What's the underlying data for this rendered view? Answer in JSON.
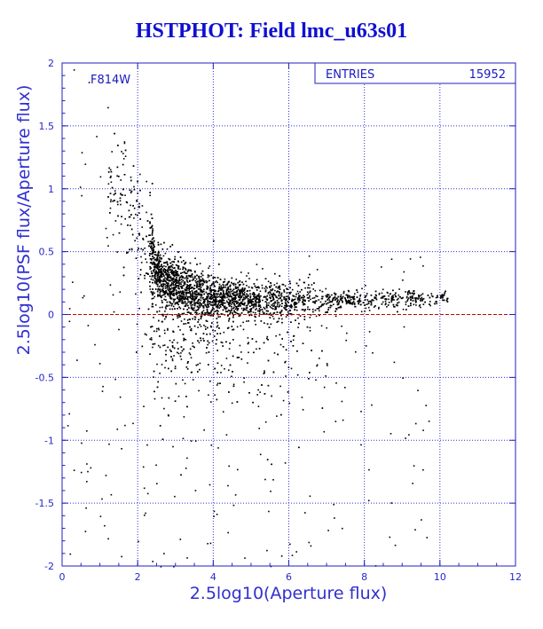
{
  "chart_data": {
    "type": "scatter",
    "title": "HSTPHOT: Field lmc_u63s01",
    "xlabel": "2.5log10(Aperture flux)",
    "ylabel": "2.5log10(PSF flux/Aperture flux)",
    "xlim": [
      0,
      12
    ],
    "ylim": [
      -2,
      2
    ],
    "xticks": [
      0,
      2,
      4,
      6,
      8,
      10,
      12
    ],
    "yticks": [
      -2,
      -1.5,
      -1,
      -0.5,
      0,
      0.5,
      1,
      1.5,
      2
    ],
    "xtick_labels": [
      "0",
      "2",
      "4",
      "6",
      "8",
      "10",
      "12"
    ],
    "ytick_labels": [
      "-2",
      "-1.5",
      "-1",
      "-0.5",
      "0",
      "0.5",
      "1",
      "1.5",
      "2"
    ],
    "grid": true,
    "filter_label": "F814W",
    "stats_box": {
      "label": "ENTRIES",
      "value": "15952"
    },
    "reference_line": {
      "y": 0,
      "color": "#cc0000",
      "style": "dashed"
    },
    "series": [
      {
        "points": [
          [
            0.3,
            1.95
          ],
          [
            0.7,
            1.85
          ],
          [
            1.2,
            1.65
          ],
          [
            0.9,
            1.42
          ],
          [
            1.3,
            1.3
          ],
          [
            0.6,
            1.2
          ],
          [
            1.0,
            1.1
          ],
          [
            1.6,
            1.0
          ],
          [
            1.9,
            0.85
          ],
          [
            2.1,
            0.7
          ],
          [
            0.5,
            0.95
          ],
          [
            1.4,
            0.75
          ],
          [
            2.3,
            0.55
          ],
          [
            2.6,
            0.45
          ],
          [
            3.0,
            0.4
          ],
          [
            3.5,
            0.35
          ],
          [
            4.0,
            0.3
          ],
          [
            4.5,
            0.25
          ],
          [
            5.0,
            0.22
          ],
          [
            5.5,
            0.2
          ],
          [
            6.0,
            0.18
          ],
          [
            6.5,
            0.17
          ],
          [
            7.0,
            0.16
          ],
          [
            7.5,
            0.16
          ],
          [
            8.0,
            0.15
          ],
          [
            8.5,
            0.15
          ],
          [
            9.0,
            0.14
          ],
          [
            9.5,
            0.14
          ],
          [
            10.0,
            0.14
          ],
          [
            3.0,
            0.1
          ],
          [
            3.5,
            0.08
          ],
          [
            4.0,
            0.05
          ],
          [
            4.5,
            0.02
          ],
          [
            5.0,
            0.0
          ],
          [
            3.2,
            -0.2
          ],
          [
            3.8,
            -0.3
          ],
          [
            4.2,
            -0.4
          ],
          [
            3.6,
            -0.6
          ],
          [
            4.8,
            -0.5
          ],
          [
            2.8,
            -0.8
          ],
          [
            3.4,
            -1.0
          ],
          [
            4.4,
            -1.2
          ],
          [
            5.2,
            -0.9
          ],
          [
            6.0,
            -0.7
          ],
          [
            1.0,
            -1.6
          ],
          [
            2.0,
            -1.8
          ],
          [
            4.0,
            -1.6
          ],
          [
            5.5,
            -1.4
          ],
          [
            0.2,
            -1.9
          ],
          [
            7.0,
            -0.4
          ],
          [
            7.5,
            -0.2
          ],
          [
            8.2,
            -0.3
          ],
          [
            9.0,
            -0.5
          ],
          [
            6.5,
            0.3
          ]
        ],
        "density_model": {
          "ridge": [
            [
              1.6,
              0.95
            ],
            [
              2.2,
              0.55
            ],
            [
              2.6,
              0.3
            ],
            [
              3.5,
              0.15
            ],
            [
              5.0,
              0.12
            ],
            [
              7.0,
              0.12
            ],
            [
              9.0,
              0.13
            ],
            [
              10.2,
              0.14
            ]
          ],
          "total_points": 15952
        }
      }
    ]
  },
  "colors": {
    "axis": "#2020c0",
    "grid": "#3030d8",
    "points": "#000000",
    "title": "#1010d0",
    "zero_line": "#cc0000"
  }
}
